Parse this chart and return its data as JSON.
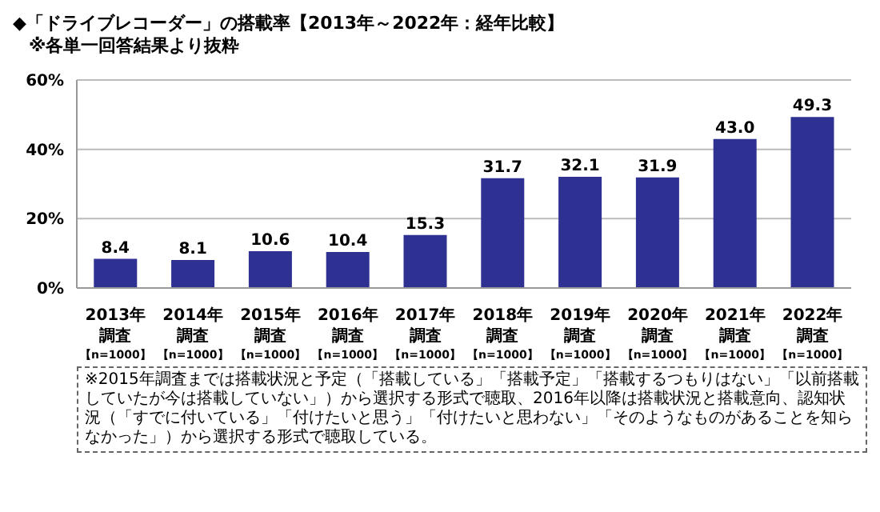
{
  "chart_data": {
    "type": "bar",
    "title": "◆「ドライブレコーダー」の搭載率【2013年～2022年：経年比較】",
    "subtitle": "※各単一回答結果より抜粋",
    "categories": [
      "2013年調査【n=1000】",
      "2014年調査【n=1000】",
      "2015年調査【n=1000】",
      "2016年調査【n=1000】",
      "2017年調査【n=1000】",
      "2018年調査【n=1000】",
      "2019年調査【n=1000】",
      "2020年調査【n=1000】",
      "2021年調査【n=1000】",
      "2022年調査【n=1000】"
    ],
    "values": [
      8.4,
      8.1,
      10.6,
      10.4,
      15.3,
      31.7,
      32.1,
      31.9,
      43.0,
      49.3
    ],
    "value_labels": [
      "8.4",
      "8.1",
      "10.6",
      "10.4",
      "15.3",
      "31.7",
      "32.1",
      "31.9",
      "43.0",
      "49.3"
    ],
    "color": "#2e3192",
    "ylim": [
      0,
      60
    ],
    "yticks": [
      {
        "value": 0,
        "label": "0%"
      },
      {
        "value": 20,
        "label": "20%"
      },
      {
        "value": 40,
        "label": "40%"
      },
      {
        "value": 60,
        "label": "60%"
      }
    ],
    "grid": "y",
    "annotations": [
      "※2015年調査までは搭載状況と予定（「搭載している」「搭載予定」「搭載するつもりはない」「以前搭載していたが今は搭載していない」）から選択する形式で聴取、2016年以降は搭載状況と搭載意向、認知状況（「すでに付いている」「付けたいと思う」「付けたいと思わない」「そのようなものがあることを知らなかった」）から選択する形式で聴取している。"
    ]
  }
}
